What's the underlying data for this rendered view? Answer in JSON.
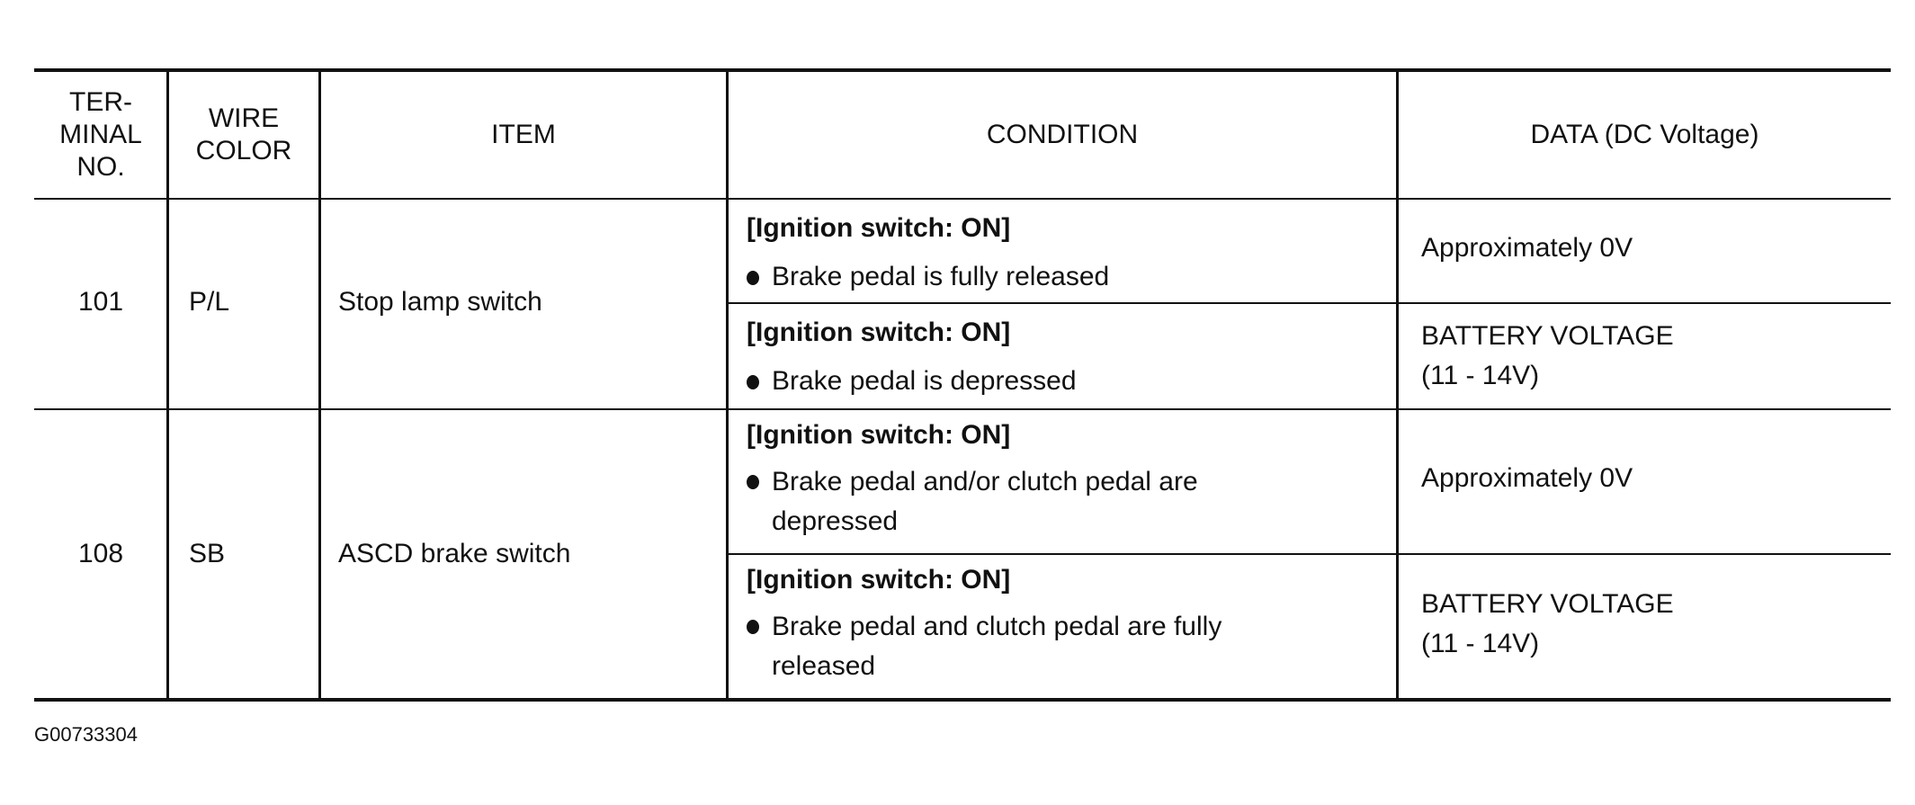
{
  "headers": [
    "TER-\nMINAL\nNO.",
    "WIRE\nCOLOR",
    "ITEM",
    "CONDITION",
    "DATA (DC Voltage)"
  ],
  "rows": [
    {
      "terminal": "101",
      "wire_color": "P/L",
      "item": "Stop lamp switch",
      "conditions": [
        {
          "state": "[Ignition switch: ON]",
          "detail": "Brake pedal is fully released",
          "data": "Approximately 0V"
        },
        {
          "state": "[Ignition switch: ON]",
          "detail": "Brake pedal is depressed",
          "data": "BATTERY VOLTAGE\n(11 - 14V)"
        }
      ]
    },
    {
      "terminal": "108",
      "wire_color": "SB",
      "item": "ASCD brake switch",
      "conditions": [
        {
          "state": "[Ignition switch: ON]",
          "detail": "Brake pedal and/or clutch pedal are\ndepressed",
          "data": "Approximately 0V"
        },
        {
          "state": "[Ignition switch: ON]",
          "detail": "Brake pedal and clutch pedal are fully\nreleased",
          "data": "BATTERY VOLTAGE\n(11 - 14V)"
        }
      ]
    }
  ],
  "figure_id": "G00733304"
}
